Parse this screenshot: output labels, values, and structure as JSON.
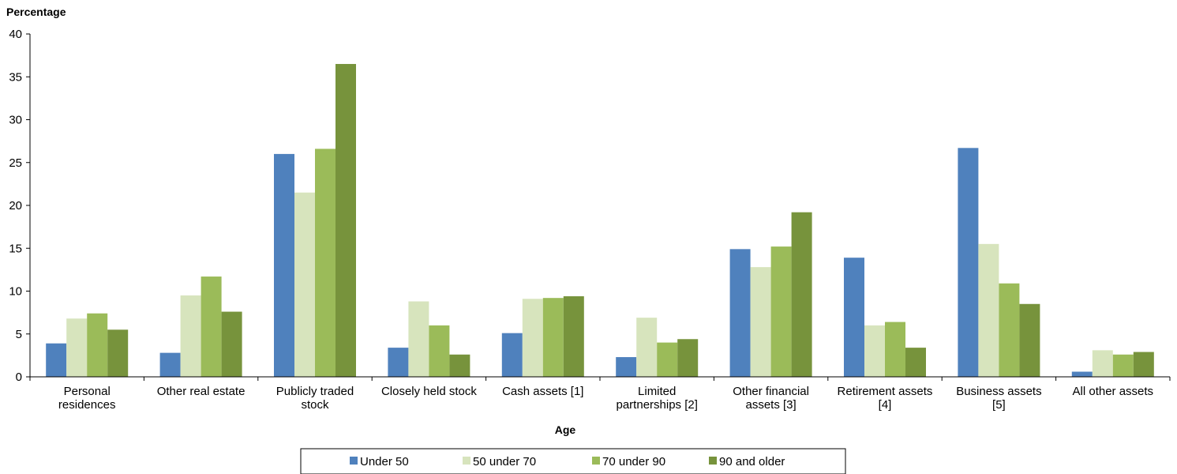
{
  "chart_data": {
    "type": "bar",
    "title": "",
    "ylabel": "Percentage",
    "xlabel": "Age",
    "ylim": [
      0,
      40
    ],
    "yticks": [
      0,
      5,
      10,
      15,
      20,
      25,
      30,
      35,
      40
    ],
    "grid": false,
    "legend_position": "bottom",
    "categories": [
      [
        "Personal",
        "residences"
      ],
      [
        "Other real estate"
      ],
      [
        "Publicly traded",
        "stock"
      ],
      [
        "Closely held stock"
      ],
      [
        "Cash assets [1]"
      ],
      [
        "Limited",
        "partnerships [2]"
      ],
      [
        "Other financial",
        "assets [3]"
      ],
      [
        "Retirement assets",
        "[4]"
      ],
      [
        "Business assets",
        "[5]"
      ],
      [
        "All other assets"
      ]
    ],
    "series": [
      {
        "name": "Under 50",
        "color": "#4f81bd",
        "values": [
          3.9,
          2.8,
          26.0,
          3.4,
          5.1,
          2.3,
          14.9,
          13.9,
          26.7,
          0.6
        ]
      },
      {
        "name": "50 under 70",
        "color": "#d7e4bd",
        "values": [
          6.8,
          9.5,
          21.5,
          8.8,
          9.1,
          6.9,
          12.8,
          6.0,
          15.5,
          3.1
        ]
      },
      {
        "name": "70 under 90",
        "color": "#9bbb59",
        "values": [
          7.4,
          11.7,
          26.6,
          6.0,
          9.2,
          4.0,
          15.2,
          6.4,
          10.9,
          2.6
        ]
      },
      {
        "name": "90 and older",
        "color": "#77933c",
        "values": [
          5.5,
          7.6,
          36.5,
          2.6,
          9.4,
          4.4,
          19.2,
          3.4,
          8.5,
          2.9
        ]
      }
    ]
  }
}
